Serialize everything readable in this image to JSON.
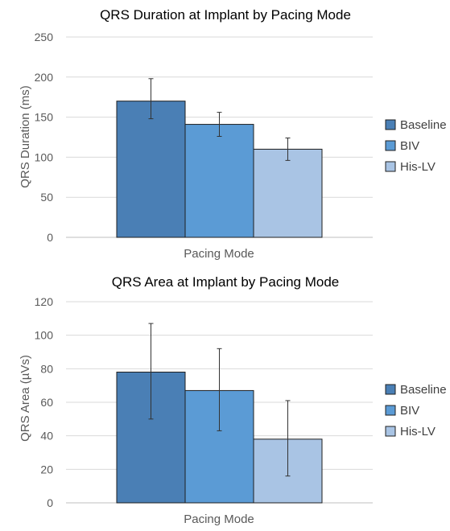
{
  "chart_data": [
    {
      "type": "bar",
      "title": "QRS Duration at Implant by Pacing Mode",
      "xlabel": "Pacing Mode",
      "ylabel": "QRS Duration (ms)",
      "ylim": [
        0,
        250
      ],
      "yticks": [
        0,
        50,
        100,
        150,
        200,
        250
      ],
      "grid": true,
      "legend_position": "right",
      "series": [
        {
          "name": "Baseline",
          "value": 170,
          "error_low": 148,
          "error_high": 198,
          "color": "#4a7fb5"
        },
        {
          "name": "BIV",
          "value": 141,
          "error_low": 126,
          "error_high": 156,
          "color": "#5b9bd5"
        },
        {
          "name": "His-LV",
          "value": 110,
          "error_low": 96,
          "error_high": 124,
          "color": "#a9c4e4"
        }
      ]
    },
    {
      "type": "bar",
      "title": "QRS Area at Implant by Pacing Mode",
      "xlabel": "Pacing Mode",
      "ylabel": "QRS Area (µVs)",
      "ylim": [
        0,
        120
      ],
      "yticks": [
        0,
        20,
        40,
        60,
        80,
        100,
        120
      ],
      "grid": true,
      "legend_position": "right",
      "series": [
        {
          "name": "Baseline",
          "value": 78,
          "error_low": 50,
          "error_high": 107,
          "color": "#4a7fb5"
        },
        {
          "name": "BIV",
          "value": 67,
          "error_low": 43,
          "error_high": 92,
          "color": "#5b9bd5"
        },
        {
          "name": "His-LV",
          "value": 38,
          "error_low": 16,
          "error_high": 61,
          "color": "#a9c4e4"
        }
      ]
    }
  ]
}
